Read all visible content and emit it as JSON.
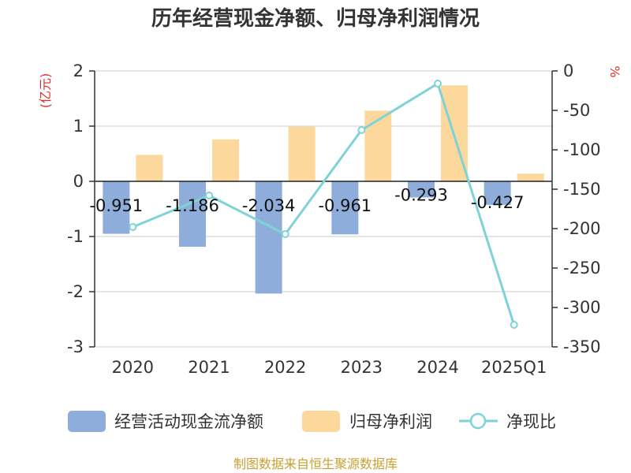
{
  "chart_data": {
    "type": "bar",
    "title": "历年经营现金净额、归母净利润情况",
    "categories": [
      "2020",
      "2021",
      "2022",
      "2023",
      "2024",
      "2025Q1"
    ],
    "left_axis": {
      "unit": "(亿元)",
      "ylim": [
        -3,
        2
      ],
      "ticks": [
        "2",
        "1",
        "0",
        "-1",
        "-2",
        "-3"
      ]
    },
    "right_axis": {
      "unit": "%",
      "ylim": [
        -350,
        0
      ],
      "ticks": [
        "0",
        "-50",
        "-100",
        "-150",
        "-200",
        "-250",
        "-300",
        "-350"
      ]
    },
    "series": [
      {
        "name": "经营活动现金流净额",
        "kind": "bar",
        "axis": "left",
        "color": "#8eaddb",
        "values": [
          -0.951,
          -1.186,
          -2.034,
          -0.961,
          -0.293,
          -0.427
        ],
        "labels": [
          "-0.951",
          "-1.186",
          "-2.034",
          "-0.961",
          "-0.293",
          "-0.427"
        ]
      },
      {
        "name": "归母净利润",
        "kind": "bar",
        "axis": "left",
        "color": "#fdd89c",
        "values": [
          0.48,
          0.76,
          0.99,
          1.28,
          1.74,
          0.14
        ]
      },
      {
        "name": "净现比",
        "kind": "line",
        "axis": "right",
        "color": "#7dd3d6",
        "values": [
          -198,
          -158,
          -207,
          -75,
          -16,
          -322
        ]
      }
    ],
    "grid": true,
    "legend_position": "bottom"
  },
  "source": "制图数据来自恒生聚源数据库"
}
